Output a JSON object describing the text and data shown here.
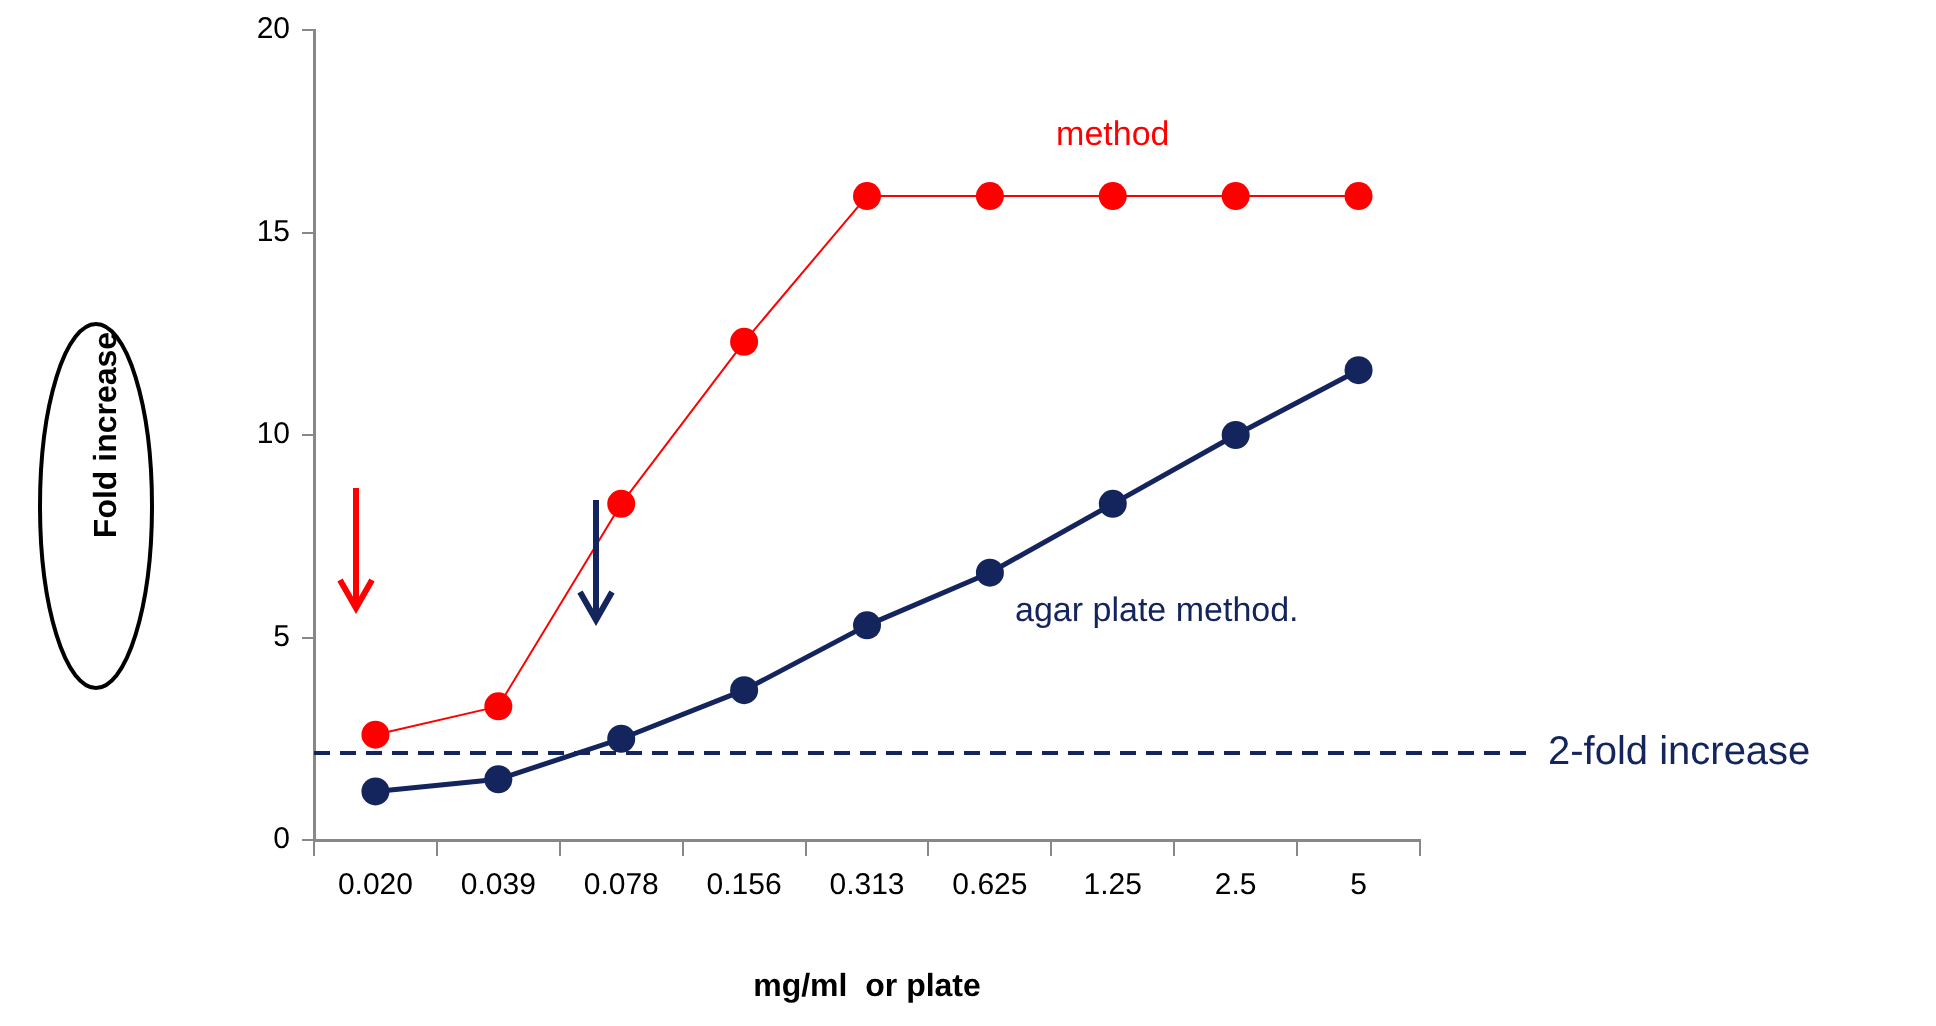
{
  "chart_data": {
    "type": "line",
    "xlabel": "mg/ml  or plate",
    "ylabel": "Fold increase",
    "categories": [
      "0.020",
      "0.039",
      "0.078",
      "0.156",
      "0.313",
      "0.625",
      "1.25",
      "2.5",
      "5"
    ],
    "series": [
      {
        "name": "method",
        "color": "#ff0000",
        "values": [
          2.6,
          3.3,
          8.3,
          12.3,
          15.9,
          15.9,
          15.9,
          15.9,
          15.9
        ]
      },
      {
        "name": "agar plate method.",
        "color": "#14245c",
        "values": [
          1.2,
          1.5,
          2.5,
          3.7,
          5.3,
          6.6,
          8.3,
          10,
          11.6
        ]
      }
    ],
    "ylim": [
      0,
      20
    ],
    "yticks": [
      0,
      5,
      10,
      15,
      20
    ],
    "marker": "circle",
    "ref_lines": [
      {
        "axis": "y",
        "value": 2.15,
        "label": "2-fold increase",
        "color": "#14245c",
        "line_style": "dashed"
      }
    ]
  }
}
